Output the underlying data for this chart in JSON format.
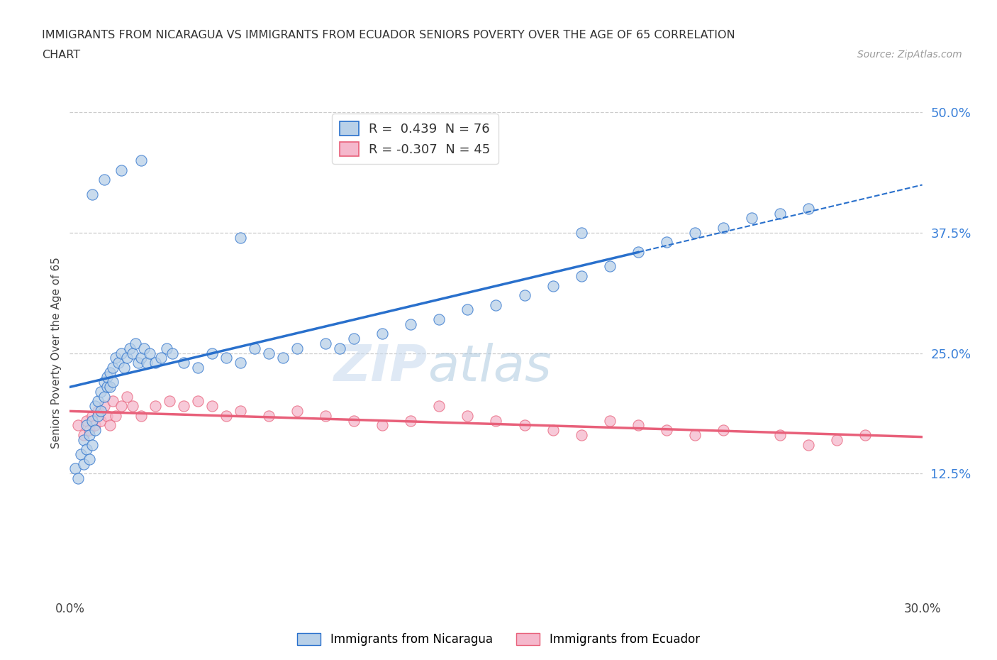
{
  "title_line1": "IMMIGRANTS FROM NICARAGUA VS IMMIGRANTS FROM ECUADOR SENIORS POVERTY OVER THE AGE OF 65 CORRELATION",
  "title_line2": "CHART",
  "source_text": "Source: ZipAtlas.com",
  "ylabel": "Seniors Poverty Over the Age of 65",
  "xmin": 0.0,
  "xmax": 0.3,
  "ymin": 0.0,
  "ymax": 0.5,
  "xticks": [
    0.0,
    0.3
  ],
  "xtick_labels": [
    "0.0%",
    "30.0%"
  ],
  "ytick_labels_right": [
    "12.5%",
    "25.0%",
    "37.5%",
    "50.0%"
  ],
  "ytick_positions_right": [
    0.125,
    0.25,
    0.375,
    0.5
  ],
  "nicaragua_R": 0.439,
  "nicaragua_N": 76,
  "ecuador_R": -0.307,
  "ecuador_N": 45,
  "nicaragua_color": "#b8d0e8",
  "ecuador_color": "#f5b8cc",
  "regression_nicaragua_color": "#2970cc",
  "regression_ecuador_color": "#e8607a",
  "watermark_color": "#c8dcf0",
  "nicaragua_scatter_x": [
    0.002,
    0.003,
    0.004,
    0.005,
    0.005,
    0.006,
    0.006,
    0.007,
    0.007,
    0.008,
    0.008,
    0.009,
    0.009,
    0.01,
    0.01,
    0.011,
    0.011,
    0.012,
    0.012,
    0.013,
    0.013,
    0.014,
    0.014,
    0.015,
    0.015,
    0.016,
    0.017,
    0.018,
    0.019,
    0.02,
    0.021,
    0.022,
    0.023,
    0.024,
    0.025,
    0.026,
    0.027,
    0.028,
    0.03,
    0.032,
    0.034,
    0.036,
    0.04,
    0.045,
    0.05,
    0.055,
    0.06,
    0.065,
    0.07,
    0.075,
    0.08,
    0.09,
    0.095,
    0.1,
    0.11,
    0.12,
    0.13,
    0.14,
    0.15,
    0.16,
    0.17,
    0.18,
    0.19,
    0.2,
    0.21,
    0.22,
    0.23,
    0.24,
    0.25,
    0.26,
    0.008,
    0.012,
    0.018,
    0.025,
    0.06,
    0.18
  ],
  "nicaragua_scatter_y": [
    0.13,
    0.12,
    0.145,
    0.135,
    0.16,
    0.15,
    0.175,
    0.165,
    0.14,
    0.155,
    0.18,
    0.17,
    0.195,
    0.185,
    0.2,
    0.21,
    0.19,
    0.22,
    0.205,
    0.215,
    0.225,
    0.23,
    0.215,
    0.235,
    0.22,
    0.245,
    0.24,
    0.25,
    0.235,
    0.245,
    0.255,
    0.25,
    0.26,
    0.24,
    0.245,
    0.255,
    0.24,
    0.25,
    0.24,
    0.245,
    0.255,
    0.25,
    0.24,
    0.235,
    0.25,
    0.245,
    0.24,
    0.255,
    0.25,
    0.245,
    0.255,
    0.26,
    0.255,
    0.265,
    0.27,
    0.28,
    0.285,
    0.295,
    0.3,
    0.31,
    0.32,
    0.33,
    0.34,
    0.355,
    0.365,
    0.375,
    0.38,
    0.39,
    0.395,
    0.4,
    0.415,
    0.43,
    0.44,
    0.45,
    0.37,
    0.375
  ],
  "ecuador_scatter_x": [
    0.003,
    0.005,
    0.006,
    0.007,
    0.008,
    0.009,
    0.01,
    0.011,
    0.012,
    0.013,
    0.014,
    0.015,
    0.016,
    0.018,
    0.02,
    0.022,
    0.025,
    0.03,
    0.035,
    0.04,
    0.045,
    0.05,
    0.055,
    0.06,
    0.07,
    0.08,
    0.09,
    0.1,
    0.11,
    0.12,
    0.13,
    0.14,
    0.15,
    0.16,
    0.17,
    0.18,
    0.19,
    0.2,
    0.21,
    0.22,
    0.23,
    0.25,
    0.26,
    0.27,
    0.28
  ],
  "ecuador_scatter_y": [
    0.175,
    0.165,
    0.18,
    0.17,
    0.185,
    0.175,
    0.19,
    0.18,
    0.195,
    0.185,
    0.175,
    0.2,
    0.185,
    0.195,
    0.205,
    0.195,
    0.185,
    0.195,
    0.2,
    0.195,
    0.2,
    0.195,
    0.185,
    0.19,
    0.185,
    0.19,
    0.185,
    0.18,
    0.175,
    0.18,
    0.195,
    0.185,
    0.18,
    0.175,
    0.17,
    0.165,
    0.18,
    0.175,
    0.17,
    0.165,
    0.17,
    0.165,
    0.155,
    0.16,
    0.165
  ]
}
